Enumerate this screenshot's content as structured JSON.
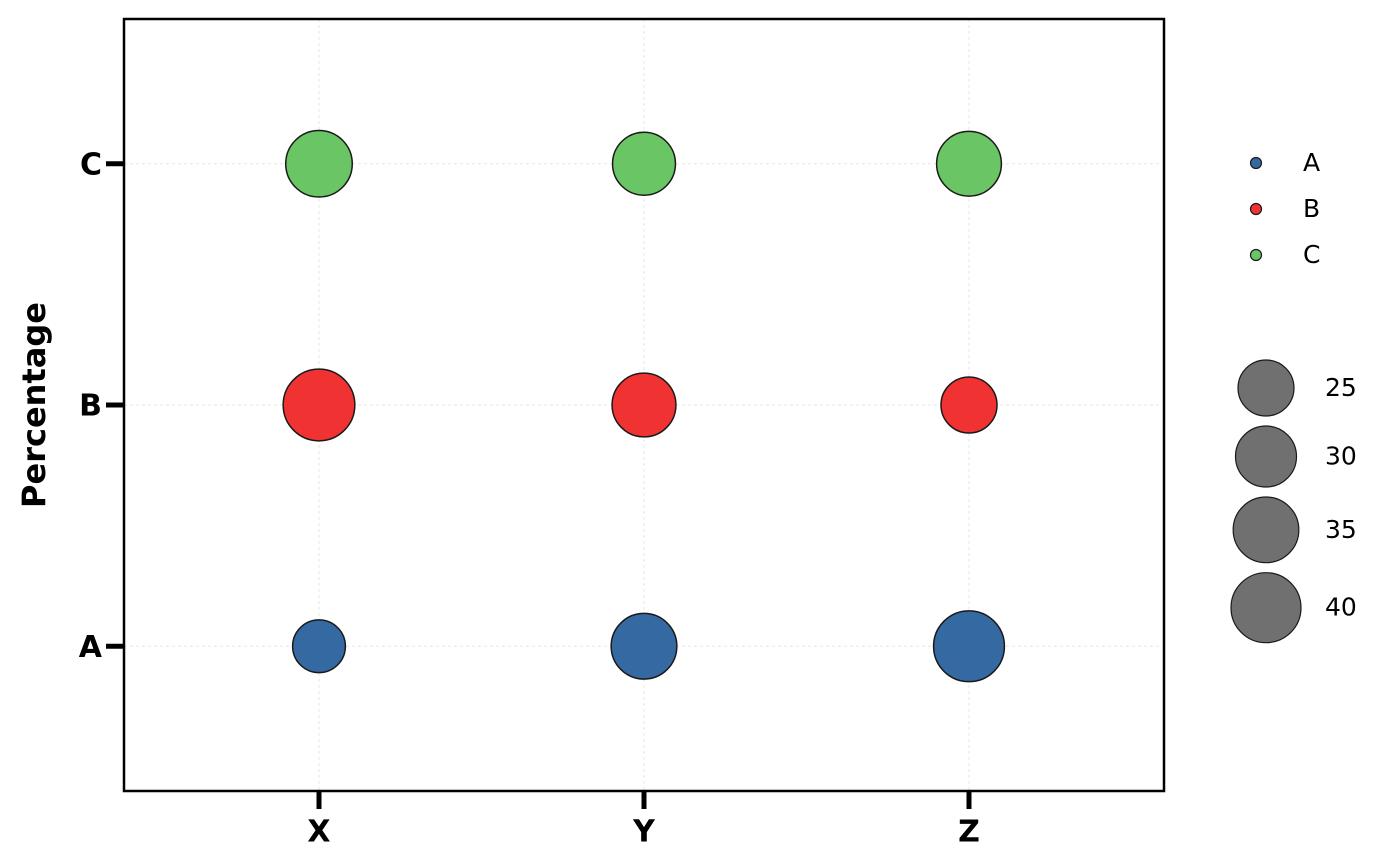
{
  "chart_data": {
    "type": "bubble",
    "ylabel": "Percentage",
    "x_categories": [
      "X",
      "Y",
      "Z"
    ],
    "y_categories": [
      "A",
      "B",
      "C"
    ],
    "series": [
      {
        "name": "A",
        "color": "#3569a1",
        "values": [
          22,
          35,
          41
        ]
      },
      {
        "name": "B",
        "color": "#f03233",
        "values": [
          42,
          33,
          25
        ]
      },
      {
        "name": "C",
        "color": "#6ac565",
        "values": [
          36,
          32,
          34
        ]
      }
    ],
    "size_legend": [
      25,
      30,
      35,
      40
    ],
    "size_legend_color": "#707070",
    "grid": true
  }
}
